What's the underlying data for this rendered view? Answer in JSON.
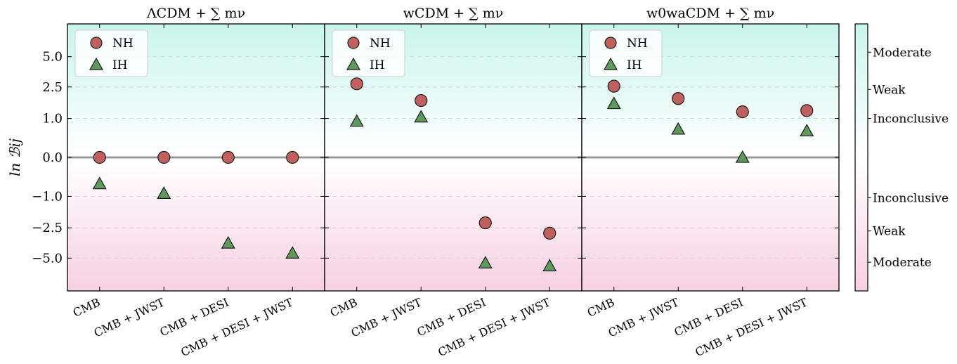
{
  "chart_data": {
    "type": "scatter",
    "ylabel": "ln ℬij",
    "ylim": [
      -6.3,
      6.3
    ],
    "yticks": [
      {
        "value": 5.0,
        "label": "5.0"
      },
      {
        "value": 2.5,
        "label": "2.5"
      },
      {
        "value": 1.0,
        "label": "1.0"
      },
      {
        "value": 0.0,
        "label": "0.0"
      },
      {
        "value": -1.0,
        "label": "−1.0"
      },
      {
        "value": -2.5,
        "label": "−2.5"
      },
      {
        "value": -5.0,
        "label": "−5.0"
      }
    ],
    "y_scale": "symlog",
    "categories": [
      "CMB",
      "CMB + JWST",
      "CMB + DESI",
      "CMB + DESI + JWST"
    ],
    "legend": {
      "placement": "top-left",
      "entries": [
        "NH",
        "IH"
      ]
    },
    "colors": {
      "NH": "#c0605f",
      "IH": "#5f9a5d",
      "positive_band": "#c9f5ec",
      "negative_band": "#f7cfe1",
      "zero_line": "#999999"
    },
    "panels": [
      {
        "title": "ΛCDM + ∑ mν",
        "series": [
          {
            "name": "NH",
            "marker": "circle",
            "values": [
              0.0,
              0.0,
              0.0,
              0.0
            ]
          },
          {
            "name": "IH",
            "marker": "triangle",
            "values": [
              -0.6,
              -0.9,
              -3.6,
              -4.5
            ]
          }
        ]
      },
      {
        "title": "wCDM + ∑ mν",
        "series": [
          {
            "name": "NH",
            "marker": "circle",
            "values": [
              2.7,
              1.75,
              -2.2,
              -2.85
            ]
          },
          {
            "name": "IH",
            "marker": "triangle",
            "values": [
              0.9,
              1.05,
              -5.55,
              -5.9
            ]
          }
        ]
      },
      {
        "title": "w0waCDM + ∑ mν",
        "series": [
          {
            "name": "NH",
            "marker": "circle",
            "values": [
              2.55,
              1.85,
              1.25,
              1.3
            ]
          },
          {
            "name": "IH",
            "marker": "triangle",
            "values": [
              1.6,
              0.65,
              0.0,
              0.6
            ]
          }
        ]
      }
    ],
    "colorbar": {
      "labels": [
        {
          "value": 5.5,
          "label": "Moderate"
        },
        {
          "value": 2.35,
          "label": "Weak"
        },
        {
          "value": 1.0,
          "label": "Inconclusive"
        },
        {
          "value": -1.05,
          "label": "Inconclusive"
        },
        {
          "value": -2.7,
          "label": "Weak"
        },
        {
          "value": -5.45,
          "label": "Moderate"
        }
      ]
    }
  }
}
